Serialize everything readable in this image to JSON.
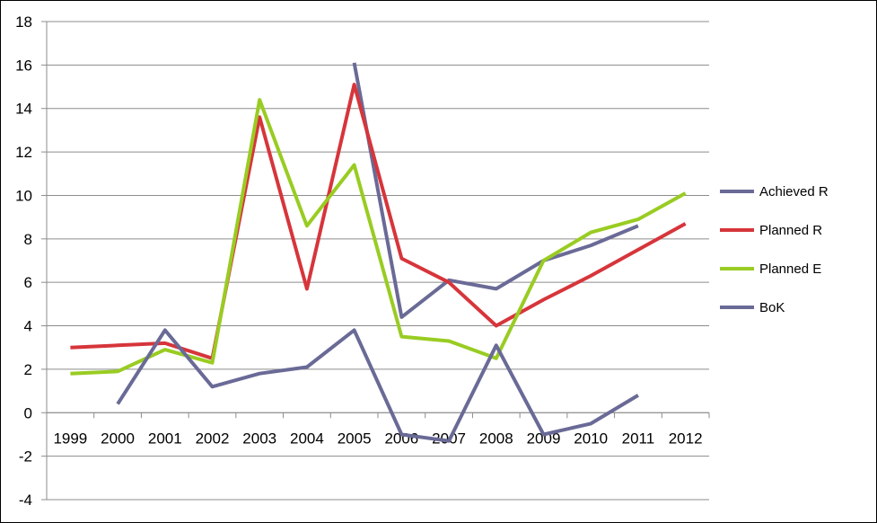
{
  "chart_data": {
    "type": "line",
    "title": "",
    "xlabel": "",
    "ylabel": "",
    "categories": [
      "1999",
      "2000",
      "2001",
      "2002",
      "2003",
      "2004",
      "2005",
      "2006",
      "2007",
      "2008",
      "2009",
      "2010",
      "2011",
      "2012"
    ],
    "ylim": [
      -4,
      18
    ],
    "yticks": [
      "18",
      "16",
      "14",
      "12",
      "10",
      "8",
      "6",
      "4",
      "2",
      "0",
      "-2",
      "-4"
    ],
    "grid": true,
    "legend_position": "right",
    "series": [
      {
        "name": "Achieved R",
        "color": "#6a6a97",
        "values": [
          null,
          null,
          null,
          null,
          null,
          null,
          16.1,
          4.4,
          6.1,
          5.7,
          7.0,
          7.7,
          8.6,
          null
        ]
      },
      {
        "name": "Planned R",
        "color": "#d6353b",
        "values": [
          3.0,
          3.1,
          3.2,
          2.5,
          13.6,
          5.7,
          15.1,
          7.1,
          6.0,
          4.0,
          5.2,
          6.3,
          7.5,
          8.7
        ]
      },
      {
        "name": "Planned E",
        "color": "#99cc22",
        "values": [
          1.8,
          1.9,
          2.9,
          2.3,
          14.4,
          8.6,
          11.4,
          3.5,
          3.3,
          2.5,
          7.0,
          8.3,
          8.9,
          10.1
        ]
      },
      {
        "name": "BoK",
        "color": "#6a6a97",
        "values": [
          null,
          0.4,
          3.8,
          1.2,
          1.8,
          2.1,
          3.8,
          -1.0,
          -1.3,
          3.1,
          -1.0,
          -0.5,
          0.8,
          null
        ]
      }
    ]
  }
}
